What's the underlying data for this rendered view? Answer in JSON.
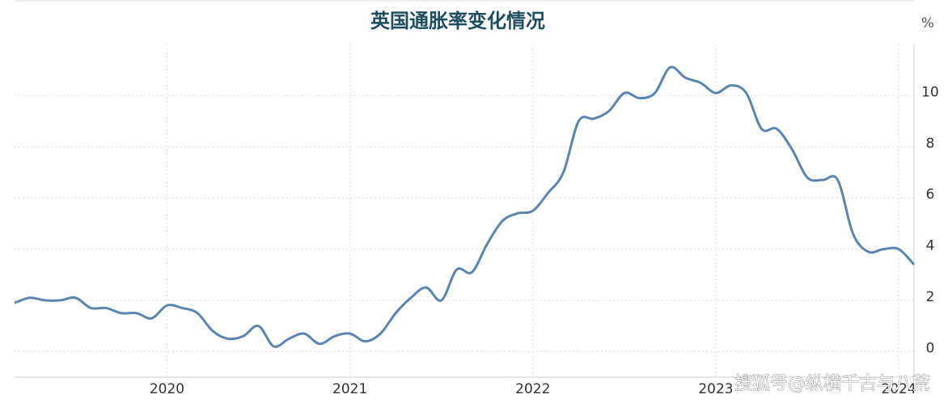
{
  "chart_data": {
    "type": "line",
    "title": "英国通胀率变化情况",
    "y_unit": "%",
    "annotation": "搜狐号@纵横千古与八荒",
    "x": [
      2019.1667,
      2019.25,
      2019.3333,
      2019.4167,
      2019.5,
      2019.5833,
      2019.6667,
      2019.75,
      2019.8333,
      2019.9167,
      2020,
      2020.0833,
      2020.1667,
      2020.25,
      2020.3333,
      2020.4167,
      2020.5,
      2020.5833,
      2020.6667,
      2020.75,
      2020.8333,
      2020.9167,
      2021,
      2021.0833,
      2021.1667,
      2021.25,
      2021.3333,
      2021.4167,
      2021.5,
      2021.5833,
      2021.6667,
      2021.75,
      2021.8333,
      2021.9167,
      2022,
      2022.0833,
      2022.1667,
      2022.25,
      2022.3333,
      2022.4167,
      2022.5,
      2022.5833,
      2022.6667,
      2022.75,
      2022.8333,
      2022.9167,
      2023,
      2023.0833,
      2023.1667,
      2023.25,
      2023.3333,
      2023.4167,
      2023.5,
      2023.5833,
      2023.6667,
      2023.75,
      2023.8333,
      2023.9167,
      2024,
      2024.0833
    ],
    "series": [
      {
        "name": "英国通胀率",
        "color": "#5b84b1",
        "values": [
          1.9,
          2.1,
          2.0,
          2.0,
          2.1,
          1.7,
          1.7,
          1.5,
          1.5,
          1.3,
          1.8,
          1.7,
          1.5,
          0.8,
          0.5,
          0.6,
          1.0,
          0.2,
          0.5,
          0.7,
          0.3,
          0.6,
          0.7,
          0.4,
          0.7,
          1.5,
          2.1,
          2.5,
          2.0,
          3.2,
          3.1,
          4.2,
          5.1,
          5.4,
          5.5,
          6.2,
          7.0,
          9.0,
          9.1,
          9.4,
          10.1,
          9.9,
          10.1,
          11.1,
          10.7,
          10.5,
          10.1,
          10.4,
          10.1,
          8.7,
          8.7,
          7.9,
          6.8,
          6.7,
          6.7,
          4.6,
          3.9,
          4.0,
          4.0,
          3.4
        ]
      }
    ],
    "xlim": [
      2019.1667,
      2024.0833
    ],
    "xticks": [
      2020,
      2021,
      2022,
      2023,
      2024
    ],
    "ylim": [
      -1,
      12
    ],
    "yticks": [
      0,
      2,
      4,
      6,
      8,
      10
    ],
    "grid": true
  }
}
